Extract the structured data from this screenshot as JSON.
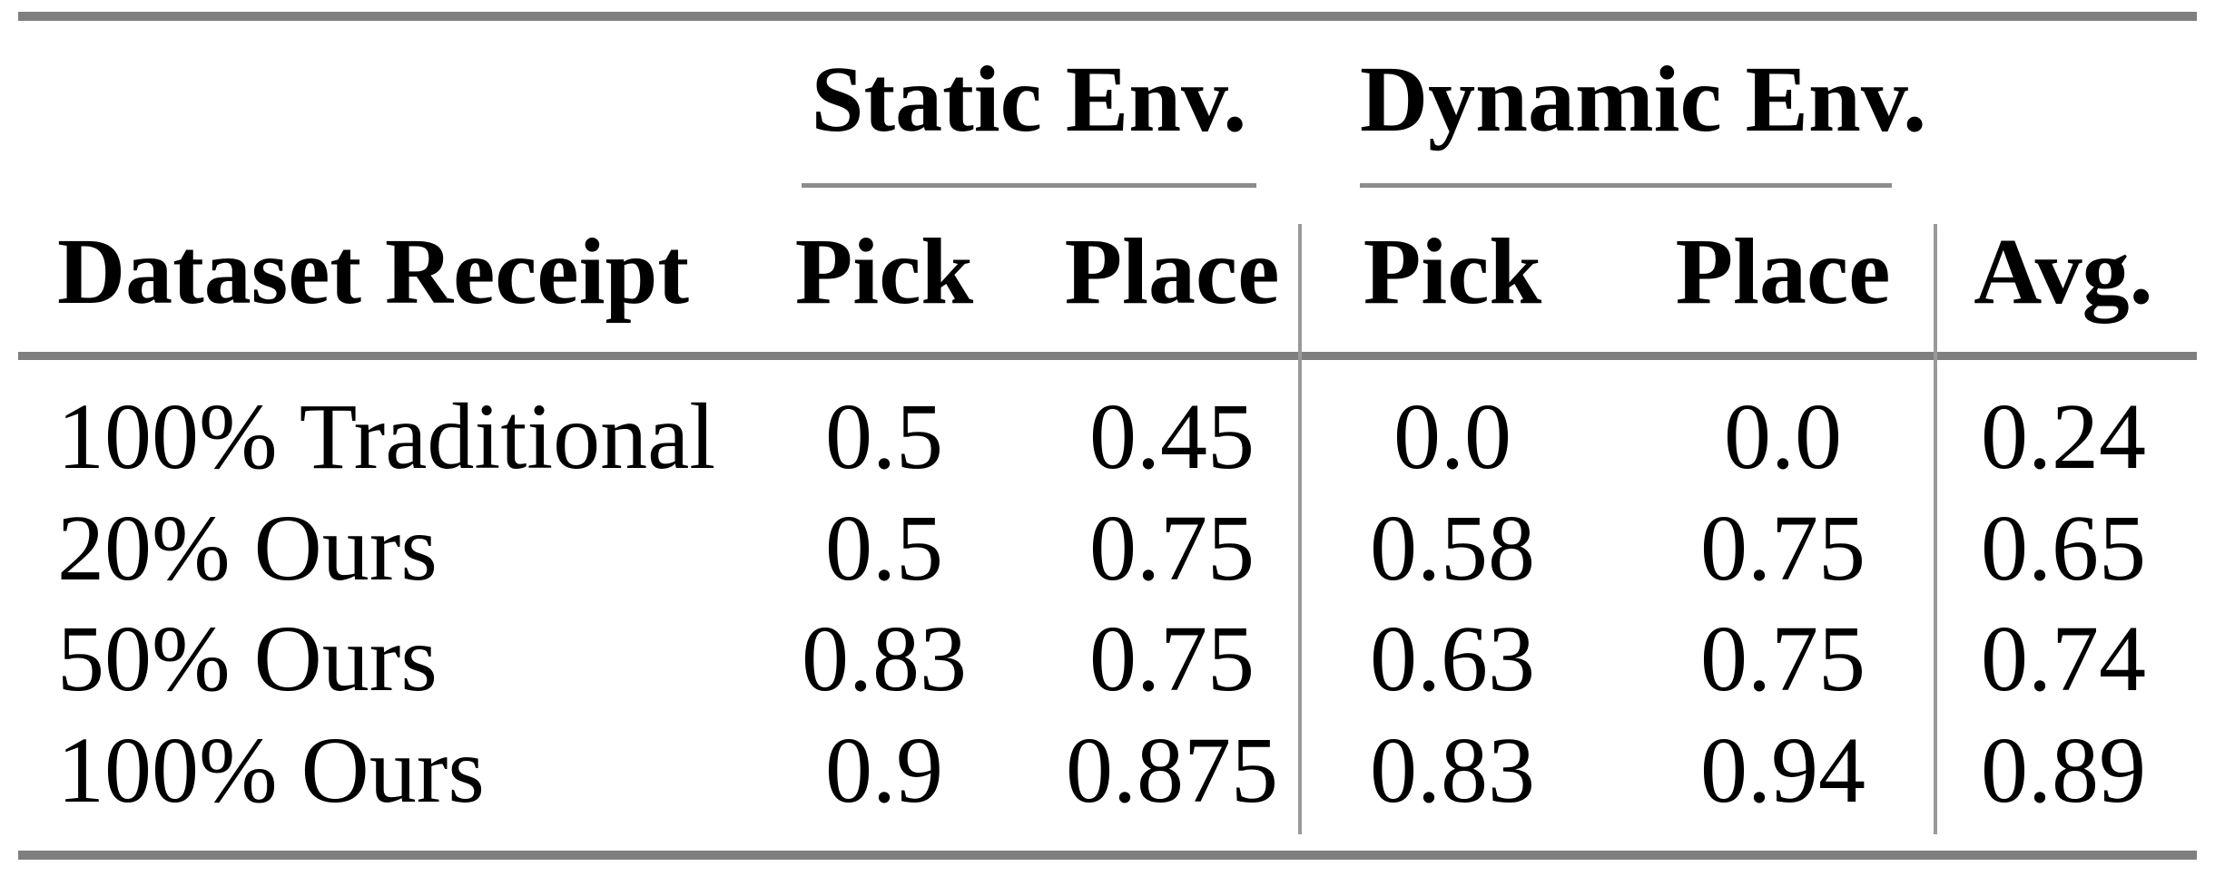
{
  "table": {
    "col_groups": [
      {
        "label": "Static Env."
      },
      {
        "label": "Dynamic Env."
      }
    ],
    "headers": {
      "dataset": "Dataset Receipt",
      "static_pick": "Pick",
      "static_place": "Place",
      "dynamic_pick": "Pick",
      "dynamic_place": "Place",
      "avg": "Avg."
    },
    "rows": [
      {
        "label": "100% Traditional",
        "static_pick": "0.5",
        "static_place": "0.45",
        "dynamic_pick": "0.0",
        "dynamic_place": "0.0",
        "avg": "0.24"
      },
      {
        "label": "20% Ours",
        "static_pick": "0.5",
        "static_place": "0.75",
        "dynamic_pick": "0.58",
        "dynamic_place": "0.75",
        "avg": "0.65"
      },
      {
        "label": "50% Ours",
        "static_pick": "0.83",
        "static_place": "0.75",
        "dynamic_pick": "0.63",
        "dynamic_place": "0.75",
        "avg": "0.74"
      },
      {
        "label": "100% Ours",
        "static_pick": "0.9",
        "static_place": "0.875",
        "dynamic_pick": "0.83",
        "dynamic_place": "0.94",
        "avg": "0.89"
      }
    ],
    "colors": {
      "rule_thick": "#7f7f7f",
      "rule_thin": "#8c8c8c",
      "text": "#000000",
      "background": "#ffffff"
    }
  }
}
